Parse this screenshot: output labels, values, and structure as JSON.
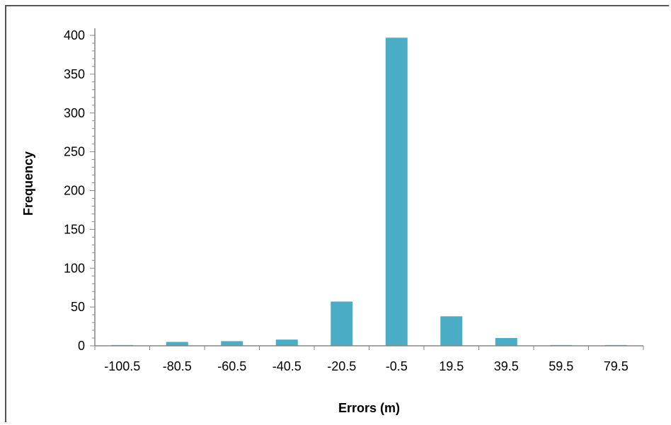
{
  "chart_data": {
    "type": "bar",
    "title": "",
    "xlabel": "Errors (m)",
    "ylabel": "Frequency",
    "categories": [
      "-100.5",
      "-80.5",
      "-60.5",
      "-40.5",
      "-20.5",
      "-0.5",
      "19.5",
      "39.5",
      "59.5",
      "79.5"
    ],
    "values": [
      1,
      5,
      6,
      8,
      57,
      397,
      38,
      10,
      1,
      1
    ],
    "ylim": [
      0,
      400
    ],
    "yticks": [
      0,
      50,
      100,
      150,
      200,
      250,
      300,
      350,
      400
    ],
    "grid": false,
    "legend": "none",
    "bar_color": "#4BACC6",
    "axis_color": "#868686"
  }
}
